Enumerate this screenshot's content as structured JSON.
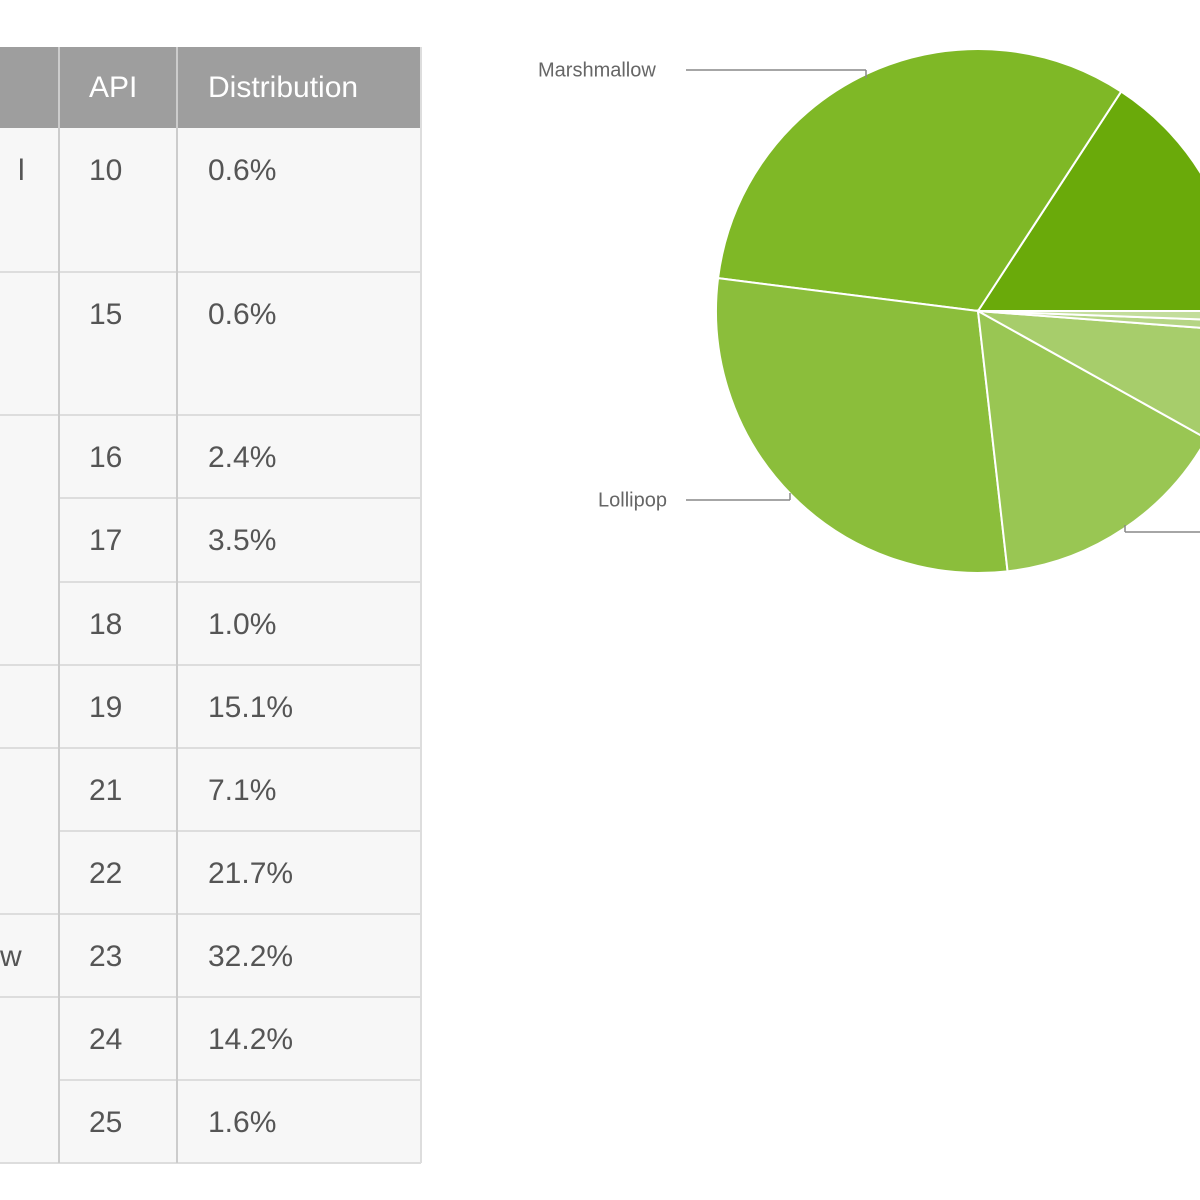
{
  "table": {
    "header": [
      "API",
      "Distribution"
    ],
    "rows": [
      [
        "l",
        "10",
        "0.6%"
      ],
      [
        null,
        "15",
        "0.6%"
      ],
      [
        null,
        "16",
        "2.4%"
      ],
      [
        null,
        "17",
        "3.5%"
      ],
      [
        null,
        "18",
        "1.0%"
      ],
      [
        null,
        "19",
        "15.1%"
      ],
      [
        null,
        "21",
        "7.1%"
      ],
      [
        null,
        "22",
        "21.7%"
      ],
      [
        "w",
        "23",
        "32.2%"
      ],
      [
        null,
        "24",
        "14.2%"
      ],
      [
        null,
        "25",
        "1.6%"
      ]
    ]
  },
  "chart_data": {
    "type": "pie",
    "categories": [
      null,
      "Marshmallow",
      "Lollipop",
      null,
      null,
      null,
      null
    ],
    "values": [
      15.8,
      32.2,
      28.8,
      15.1,
      6.9,
      0.6,
      0.6
    ],
    "colors": [
      "#6aaa0a",
      "#7fb826",
      "#8bbe3b",
      "#99c653",
      "#a7cd6b",
      "#b5d584",
      "#c3dd9c"
    ]
  }
}
